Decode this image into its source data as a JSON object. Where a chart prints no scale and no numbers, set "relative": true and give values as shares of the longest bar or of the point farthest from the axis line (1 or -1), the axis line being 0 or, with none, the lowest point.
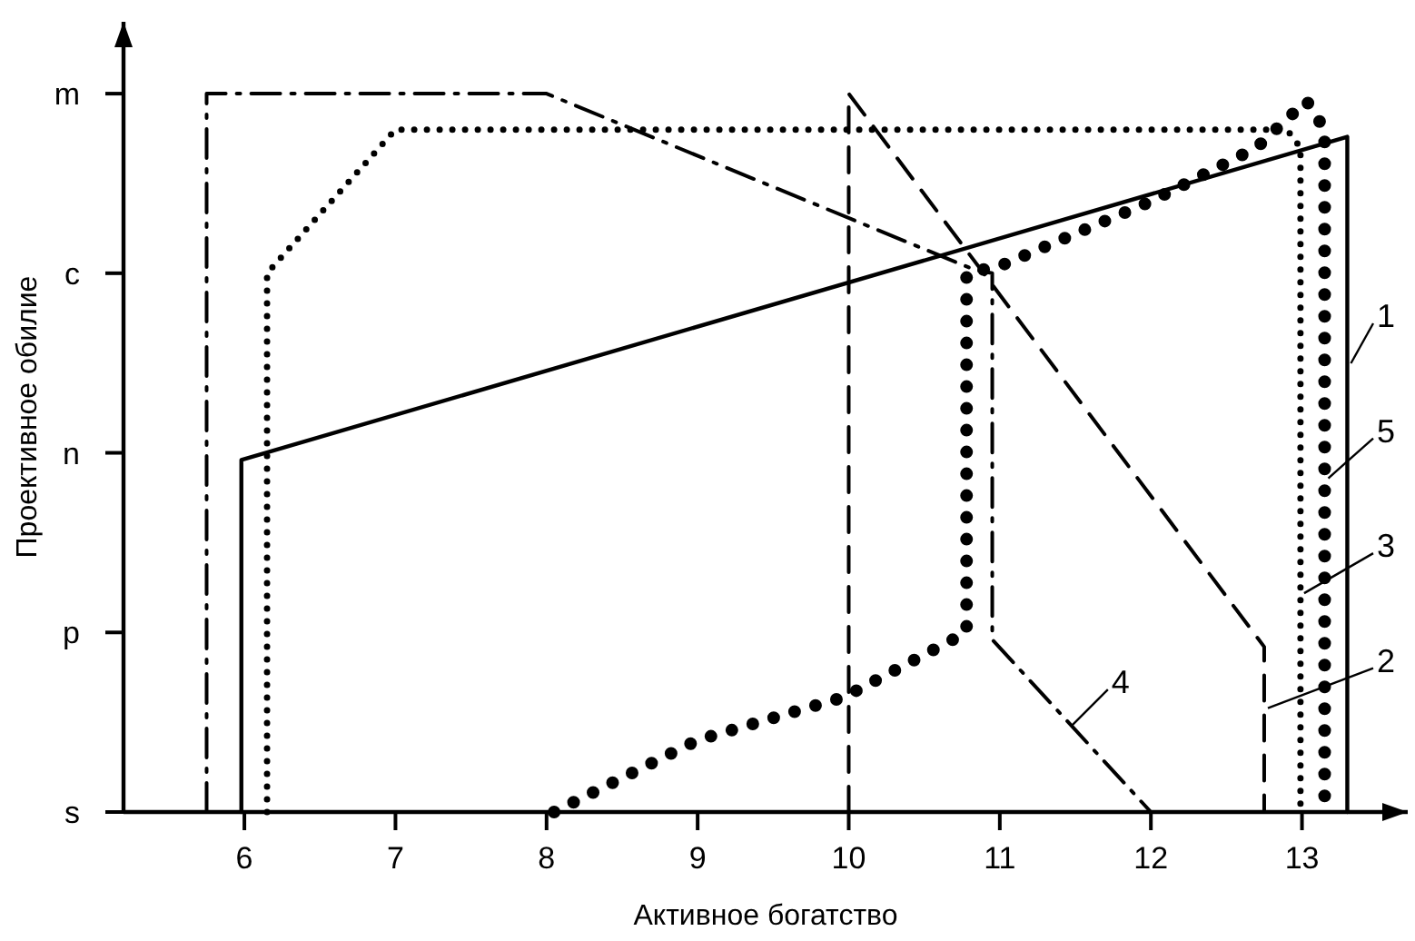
{
  "chart_data": {
    "type": "line",
    "xlabel": "Активное богатство",
    "ylabel": "Проективное обилие",
    "relative": true,
    "xlim": [
      5.2,
      13.7
    ],
    "xticks": [
      6,
      7,
      8,
      9,
      10,
      11,
      12,
      13
    ],
    "y_categories": [
      "m",
      "c",
      "n",
      "p",
      "s"
    ],
    "grid": false,
    "legend": false,
    "marker": "none",
    "series": [
      {
        "name": "1",
        "color": "#000000",
        "line_style": "solid",
        "x": [
          5.98,
          5.98,
          13.3,
          13.3
        ],
        "values": [
          0,
          0.49,
          0.94,
          0
        ]
      },
      {
        "name": "2",
        "color": "#000000",
        "line_style": "dashed",
        "x": [
          10,
          10,
          12.75,
          12.75
        ],
        "values": [
          0,
          1,
          0.23,
          0
        ]
      },
      {
        "name": "3",
        "color": "#000000",
        "line_style": "dotted",
        "x": [
          6.15,
          6.15,
          7,
          12.9,
          12.99,
          12.99
        ],
        "values": [
          0,
          0.75,
          0.95,
          0.95,
          0.925,
          0
        ]
      },
      {
        "name": "4",
        "color": "#000000",
        "line_style": "dashdot",
        "x": [
          5.75,
          5.75,
          8,
          10.83,
          10.95,
          10.95,
          12
        ],
        "values": [
          0,
          1,
          1,
          0.755,
          0.75,
          0.24,
          0
        ]
      },
      {
        "name": "5",
        "color": "#000000",
        "line_style": "dotted",
        "x": [
          8.05,
          9,
          9.97,
          10.78,
          10.78,
          11,
          12,
          12.7,
          13.03,
          13.15,
          13.15
        ],
        "values": [
          0,
          0.1,
          0.16,
          0.25,
          0.75,
          0.76,
          0.85,
          0.925,
          0.99,
          0.95,
          0
        ]
      }
    ]
  }
}
